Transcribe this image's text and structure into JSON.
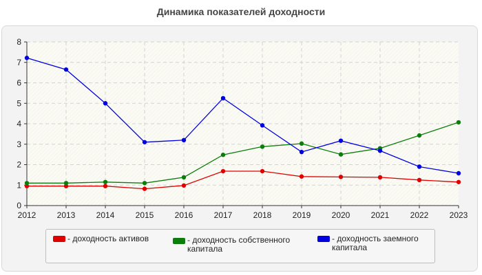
{
  "title": "Динамика показателей доходности",
  "chart_data": {
    "type": "line",
    "categories": [
      "2012",
      "2013",
      "2014",
      "2015",
      "2016",
      "2017",
      "2018",
      "2019",
      "2020",
      "2021",
      "2022",
      "2023"
    ],
    "ylim": [
      0,
      8
    ],
    "yticks": [
      0,
      1,
      2,
      3,
      4,
      5,
      6,
      7,
      8
    ],
    "grid": true,
    "legend_position": "bottom",
    "series": [
      {
        "name": "- доходность активов",
        "color": "#e00000",
        "values": [
          0.95,
          0.95,
          0.95,
          0.82,
          0.98,
          1.68,
          1.68,
          1.42,
          1.4,
          1.38,
          1.25,
          1.15
        ]
      },
      {
        "name": "- доходность собственного\nкапитала",
        "color": "#0a7d0a",
        "values": [
          1.1,
          1.1,
          1.15,
          1.1,
          1.38,
          2.48,
          2.88,
          3.03,
          2.5,
          2.8,
          3.43,
          4.07
        ]
      },
      {
        "name": "- доходность заемного\nкапитала",
        "color": "#0000e0",
        "values": [
          7.22,
          6.65,
          5.0,
          3.1,
          3.2,
          5.25,
          3.92,
          2.62,
          3.17,
          2.68,
          1.9,
          1.58
        ]
      }
    ]
  }
}
